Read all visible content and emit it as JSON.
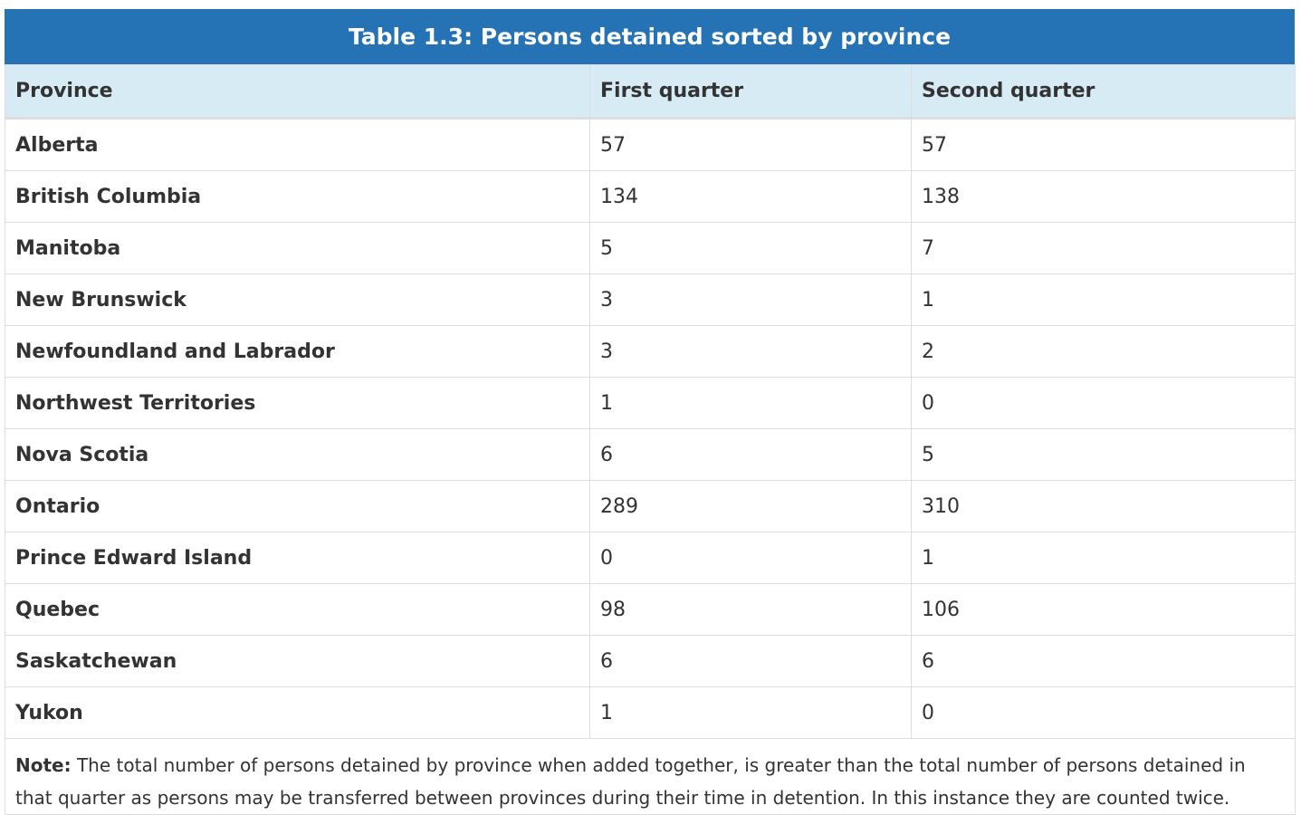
{
  "table": {
    "caption": "Table 1.3: Persons detained sorted by province",
    "headers": [
      "Province",
      "First quarter",
      "Second quarter"
    ],
    "rows": [
      {
        "province": "Alberta",
        "q1": "57",
        "q2": "57"
      },
      {
        "province": "British Columbia",
        "q1": "134",
        "q2": "138"
      },
      {
        "province": "Manitoba",
        "q1": "5",
        "q2": "7"
      },
      {
        "province": "New Brunswick",
        "q1": "3",
        "q2": "1"
      },
      {
        "province": "Newfoundland and Labrador",
        "q1": "3",
        "q2": "2"
      },
      {
        "province": "Northwest Territories",
        "q1": "1",
        "q2": "0"
      },
      {
        "province": "Nova Scotia",
        "q1": "6",
        "q2": "5"
      },
      {
        "province": "Ontario",
        "q1": "289",
        "q2": "310"
      },
      {
        "province": "Prince Edward Island",
        "q1": "0",
        "q2": "1"
      },
      {
        "province": "Quebec",
        "q1": "98",
        "q2": "106"
      },
      {
        "province": "Saskatchewan",
        "q1": "6",
        "q2": "6"
      },
      {
        "province": "Yukon",
        "q1": "1",
        "q2": "0"
      }
    ],
    "note_label": "Note:",
    "note_text": " The total number of persons detained by province when added together, is greater than the total number of persons detained in that quarter as persons may be transferred between provinces during their time in detention. In this instance they are counted twice."
  },
  "colors": {
    "caption_bg": "#2572b4",
    "header_bg": "#d7ebf5",
    "border": "#dddddd"
  }
}
